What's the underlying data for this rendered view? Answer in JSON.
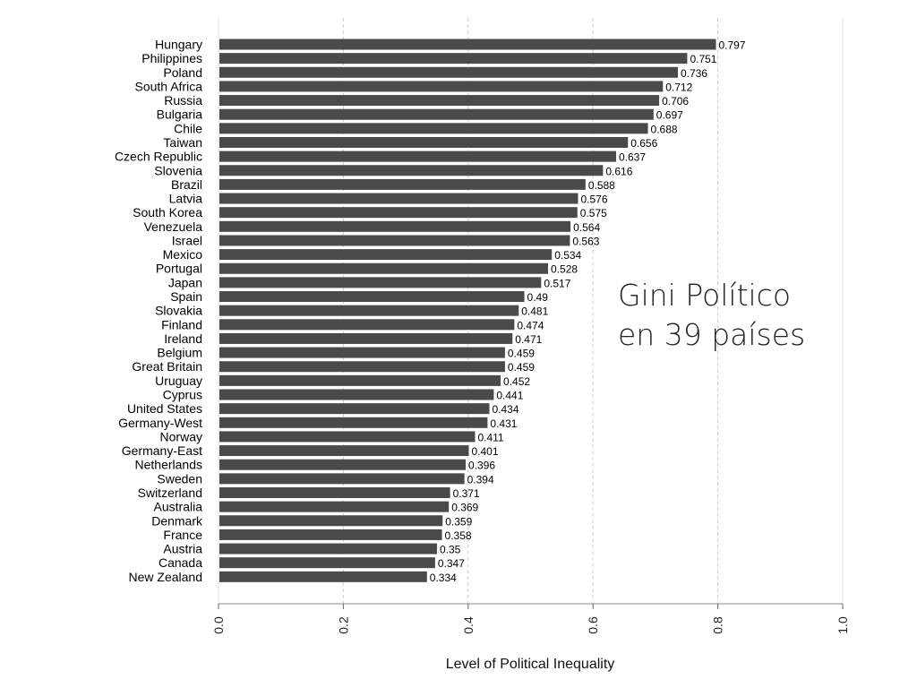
{
  "chart_data": {
    "type": "bar",
    "orientation": "horizontal",
    "xlabel": "Level of Political Inequality",
    "xlim": [
      0,
      1.0
    ],
    "x_ticks": [
      "0.0",
      "0.2",
      "0.4",
      "0.6",
      "0.8",
      "1.0"
    ],
    "grid": "vertical dashed",
    "bar_color": "#4a4a4a",
    "categories": [
      "Hungary",
      "Philippines",
      "Poland",
      "South Africa",
      "Russia",
      "Bulgaria",
      "Chile",
      "Taiwan",
      "Czech Republic",
      "Slovenia",
      "Brazil",
      "Latvia",
      "South Korea",
      "Venezuela",
      "Israel",
      "Mexico",
      "Portugal",
      "Japan",
      "Spain",
      "Slovakia",
      "Finland",
      "Ireland",
      "Belgium",
      "Great Britain",
      "Uruguay",
      "Cyprus",
      "United States",
      "Germany-West",
      "Norway",
      "Germany-East",
      "Netherlands",
      "Sweden",
      "Switzerland",
      "Australia",
      "Denmark",
      "France",
      "Austria",
      "Canada",
      "New Zealand"
    ],
    "values": [
      0.797,
      0.751,
      0.736,
      0.712,
      0.706,
      0.697,
      0.688,
      0.656,
      0.637,
      0.616,
      0.588,
      0.576,
      0.575,
      0.564,
      0.563,
      0.534,
      0.528,
      0.517,
      0.49,
      0.481,
      0.474,
      0.471,
      0.459,
      0.459,
      0.452,
      0.441,
      0.434,
      0.431,
      0.411,
      0.401,
      0.396,
      0.394,
      0.371,
      0.369,
      0.359,
      0.358,
      0.35,
      0.347,
      0.334
    ],
    "value_labels": [
      "0.797",
      "0.751",
      "0.736",
      "0.712",
      "0.706",
      "0.697",
      "0.688",
      "0.656",
      "0.637",
      "0.616",
      "0.588",
      "0.576",
      "0.575",
      "0.564",
      "0.563",
      "0.534",
      "0.528",
      "0.517",
      "0.49",
      "0.481",
      "0.474",
      "0.471",
      "0.459",
      "0.459",
      "0.452",
      "0.441",
      "0.434",
      "0.431",
      "0.411",
      "0.401",
      "0.396",
      "0.394",
      "0.371",
      "0.369",
      "0.359",
      "0.358",
      "0.35",
      "0.347",
      "0.334"
    ]
  },
  "annotation": {
    "line1": "Gini Político",
    "line2": "en 39 países"
  }
}
